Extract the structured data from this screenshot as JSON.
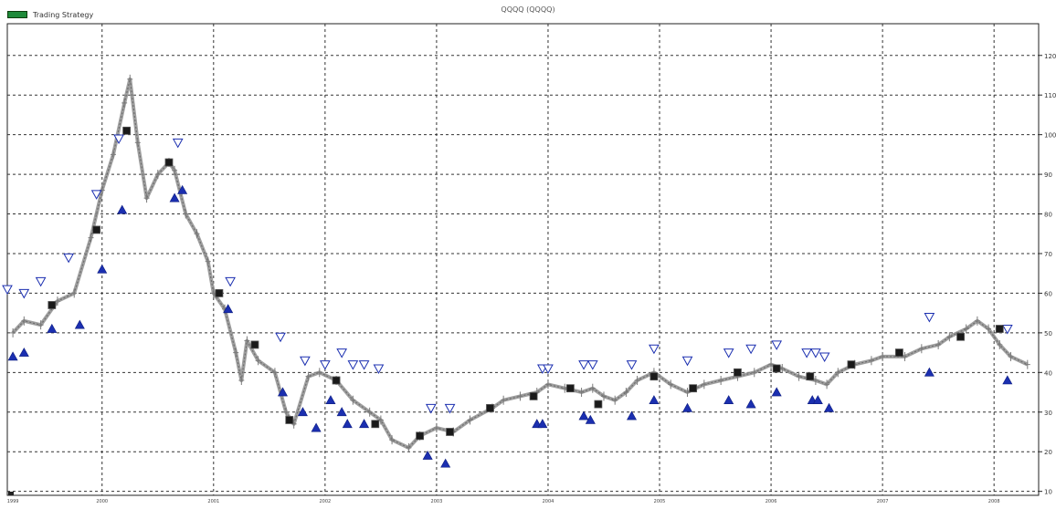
{
  "chart_data": {
    "type": "line",
    "title": "QQQQ (QQQQ)",
    "xlabel": "",
    "ylabel": "",
    "legend": {
      "entries": [
        "Trading Strategy"
      ],
      "placement": "top-left"
    },
    "colors": {
      "price": "#8e8e8e",
      "buy": "#1b2fb0",
      "sell": "#1b2fb0",
      "exit": "#1a1a1a",
      "legend_swatch": "#1f8a3a",
      "grid": "#333333"
    },
    "grid": true,
    "x_range": [
      1999.15,
      2008.4
    ],
    "ylim": [
      9,
      128
    ],
    "y_ticks": [
      10,
      20,
      30,
      40,
      50,
      60,
      70,
      80,
      90,
      100,
      110,
      120
    ],
    "x_ticks": [
      {
        "x": 1999.2,
        "label": "1999"
      },
      {
        "x": 2000.0,
        "label": "2000"
      },
      {
        "x": 2001.0,
        "label": "2001"
      },
      {
        "x": 2002.0,
        "label": "2002"
      },
      {
        "x": 2003.0,
        "label": "2003"
      },
      {
        "x": 2004.0,
        "label": "2004"
      },
      {
        "x": 2005.0,
        "label": "2005"
      },
      {
        "x": 2006.0,
        "label": "2006"
      },
      {
        "x": 2007.0,
        "label": "2007"
      },
      {
        "x": 2008.0,
        "label": "2008"
      }
    ],
    "series": [
      {
        "name": "QQQQ",
        "style": "price-bars",
        "points": [
          [
            1999.2,
            50
          ],
          [
            1999.3,
            53
          ],
          [
            1999.45,
            52
          ],
          [
            1999.6,
            58
          ],
          [
            1999.75,
            60
          ],
          [
            1999.9,
            74
          ],
          [
            2000.0,
            86
          ],
          [
            2000.1,
            95
          ],
          [
            2000.2,
            108
          ],
          [
            2000.25,
            114
          ],
          [
            2000.32,
            98
          ],
          [
            2000.4,
            84
          ],
          [
            2000.5,
            90
          ],
          [
            2000.6,
            93
          ],
          [
            2000.65,
            91
          ],
          [
            2000.75,
            80
          ],
          [
            2000.85,
            75
          ],
          [
            2000.95,
            68
          ],
          [
            2001.0,
            60
          ],
          [
            2001.1,
            56
          ],
          [
            2001.2,
            45
          ],
          [
            2001.25,
            38
          ],
          [
            2001.3,
            48
          ],
          [
            2001.4,
            43
          ],
          [
            2001.55,
            40
          ],
          [
            2001.65,
            30
          ],
          [
            2001.72,
            27
          ],
          [
            2001.85,
            39
          ],
          [
            2001.95,
            40
          ],
          [
            2002.1,
            38
          ],
          [
            2002.25,
            33
          ],
          [
            2002.4,
            30
          ],
          [
            2002.5,
            28
          ],
          [
            2002.6,
            23
          ],
          [
            2002.75,
            21
          ],
          [
            2002.85,
            24
          ],
          [
            2003.0,
            26
          ],
          [
            2003.15,
            25
          ],
          [
            2003.3,
            28
          ],
          [
            2003.5,
            31
          ],
          [
            2003.6,
            33
          ],
          [
            2003.75,
            34
          ],
          [
            2003.9,
            35
          ],
          [
            2004.0,
            37
          ],
          [
            2004.15,
            36
          ],
          [
            2004.3,
            35
          ],
          [
            2004.4,
            36
          ],
          [
            2004.5,
            34
          ],
          [
            2004.6,
            33
          ],
          [
            2004.7,
            35
          ],
          [
            2004.8,
            38
          ],
          [
            2004.95,
            40
          ],
          [
            2005.1,
            37
          ],
          [
            2005.25,
            35
          ],
          [
            2005.4,
            37
          ],
          [
            2005.55,
            38
          ],
          [
            2005.7,
            39
          ],
          [
            2005.85,
            40
          ],
          [
            2006.0,
            42
          ],
          [
            2006.1,
            41
          ],
          [
            2006.25,
            39
          ],
          [
            2006.4,
            38
          ],
          [
            2006.5,
            37
          ],
          [
            2006.6,
            40
          ],
          [
            2006.75,
            42
          ],
          [
            2006.9,
            43
          ],
          [
            2007.0,
            44
          ],
          [
            2007.2,
            44
          ],
          [
            2007.35,
            46
          ],
          [
            2007.5,
            47
          ],
          [
            2007.6,
            49
          ],
          [
            2007.75,
            51
          ],
          [
            2007.85,
            53
          ],
          [
            2007.95,
            51
          ],
          [
            2008.05,
            47
          ],
          [
            2008.15,
            44
          ],
          [
            2008.3,
            42
          ]
        ]
      },
      {
        "name": "Buy",
        "style": "up-triangle",
        "points": [
          [
            1999.2,
            44
          ],
          [
            1999.3,
            45
          ],
          [
            1999.55,
            51
          ],
          [
            1999.8,
            52
          ],
          [
            2000.0,
            66
          ],
          [
            2000.18,
            81
          ],
          [
            2000.65,
            84
          ],
          [
            2000.72,
            86
          ],
          [
            2001.13,
            56
          ],
          [
            2001.62,
            35
          ],
          [
            2001.8,
            30
          ],
          [
            2001.92,
            26
          ],
          [
            2002.05,
            33
          ],
          [
            2002.15,
            30
          ],
          [
            2002.2,
            27
          ],
          [
            2002.35,
            27
          ],
          [
            2002.92,
            19
          ],
          [
            2003.08,
            17
          ],
          [
            2003.9,
            27
          ],
          [
            2003.95,
            27
          ],
          [
            2004.32,
            29
          ],
          [
            2004.38,
            28
          ],
          [
            2004.75,
            29
          ],
          [
            2004.95,
            33
          ],
          [
            2005.25,
            31
          ],
          [
            2005.62,
            33
          ],
          [
            2005.82,
            32
          ],
          [
            2006.05,
            35
          ],
          [
            2006.37,
            33
          ],
          [
            2006.42,
            33
          ],
          [
            2006.52,
            31
          ],
          [
            2007.42,
            40
          ],
          [
            2008.12,
            38
          ]
        ]
      },
      {
        "name": "Sell",
        "style": "down-triangle",
        "points": [
          [
            1999.15,
            61
          ],
          [
            1999.3,
            60
          ],
          [
            1999.45,
            63
          ],
          [
            1999.7,
            69
          ],
          [
            1999.95,
            85
          ],
          [
            2000.15,
            99
          ],
          [
            2000.68,
            98
          ],
          [
            2001.15,
            63
          ],
          [
            2001.6,
            49
          ],
          [
            2001.82,
            43
          ],
          [
            2002.0,
            42
          ],
          [
            2002.15,
            45
          ],
          [
            2002.25,
            42
          ],
          [
            2002.35,
            42
          ],
          [
            2002.48,
            41
          ],
          [
            2002.95,
            31
          ],
          [
            2003.12,
            31
          ],
          [
            2003.95,
            41
          ],
          [
            2004.0,
            41
          ],
          [
            2004.32,
            42
          ],
          [
            2004.4,
            42
          ],
          [
            2004.75,
            42
          ],
          [
            2004.95,
            46
          ],
          [
            2005.25,
            43
          ],
          [
            2005.62,
            45
          ],
          [
            2005.82,
            46
          ],
          [
            2006.05,
            47
          ],
          [
            2006.32,
            45
          ],
          [
            2006.4,
            45
          ],
          [
            2006.48,
            44
          ],
          [
            2007.42,
            54
          ],
          [
            2008.12,
            51
          ]
        ]
      },
      {
        "name": "Exit",
        "style": "square",
        "points": [
          [
            1999.55,
            57
          ],
          [
            1999.95,
            76
          ],
          [
            2000.22,
            101
          ],
          [
            2000.6,
            93
          ],
          [
            2001.05,
            60
          ],
          [
            2001.37,
            47
          ],
          [
            2001.68,
            28
          ],
          [
            2002.1,
            38
          ],
          [
            2002.45,
            27
          ],
          [
            2002.85,
            24
          ],
          [
            2003.12,
            25
          ],
          [
            2003.48,
            31
          ],
          [
            2003.87,
            34
          ],
          [
            2004.2,
            36
          ],
          [
            2004.45,
            32
          ],
          [
            2004.95,
            39
          ],
          [
            2005.3,
            36
          ],
          [
            2005.7,
            40
          ],
          [
            2006.05,
            41
          ],
          [
            2006.35,
            39
          ],
          [
            2006.72,
            42
          ],
          [
            2007.15,
            45
          ],
          [
            2007.7,
            49
          ],
          [
            2008.05,
            51
          ]
        ]
      }
    ]
  }
}
